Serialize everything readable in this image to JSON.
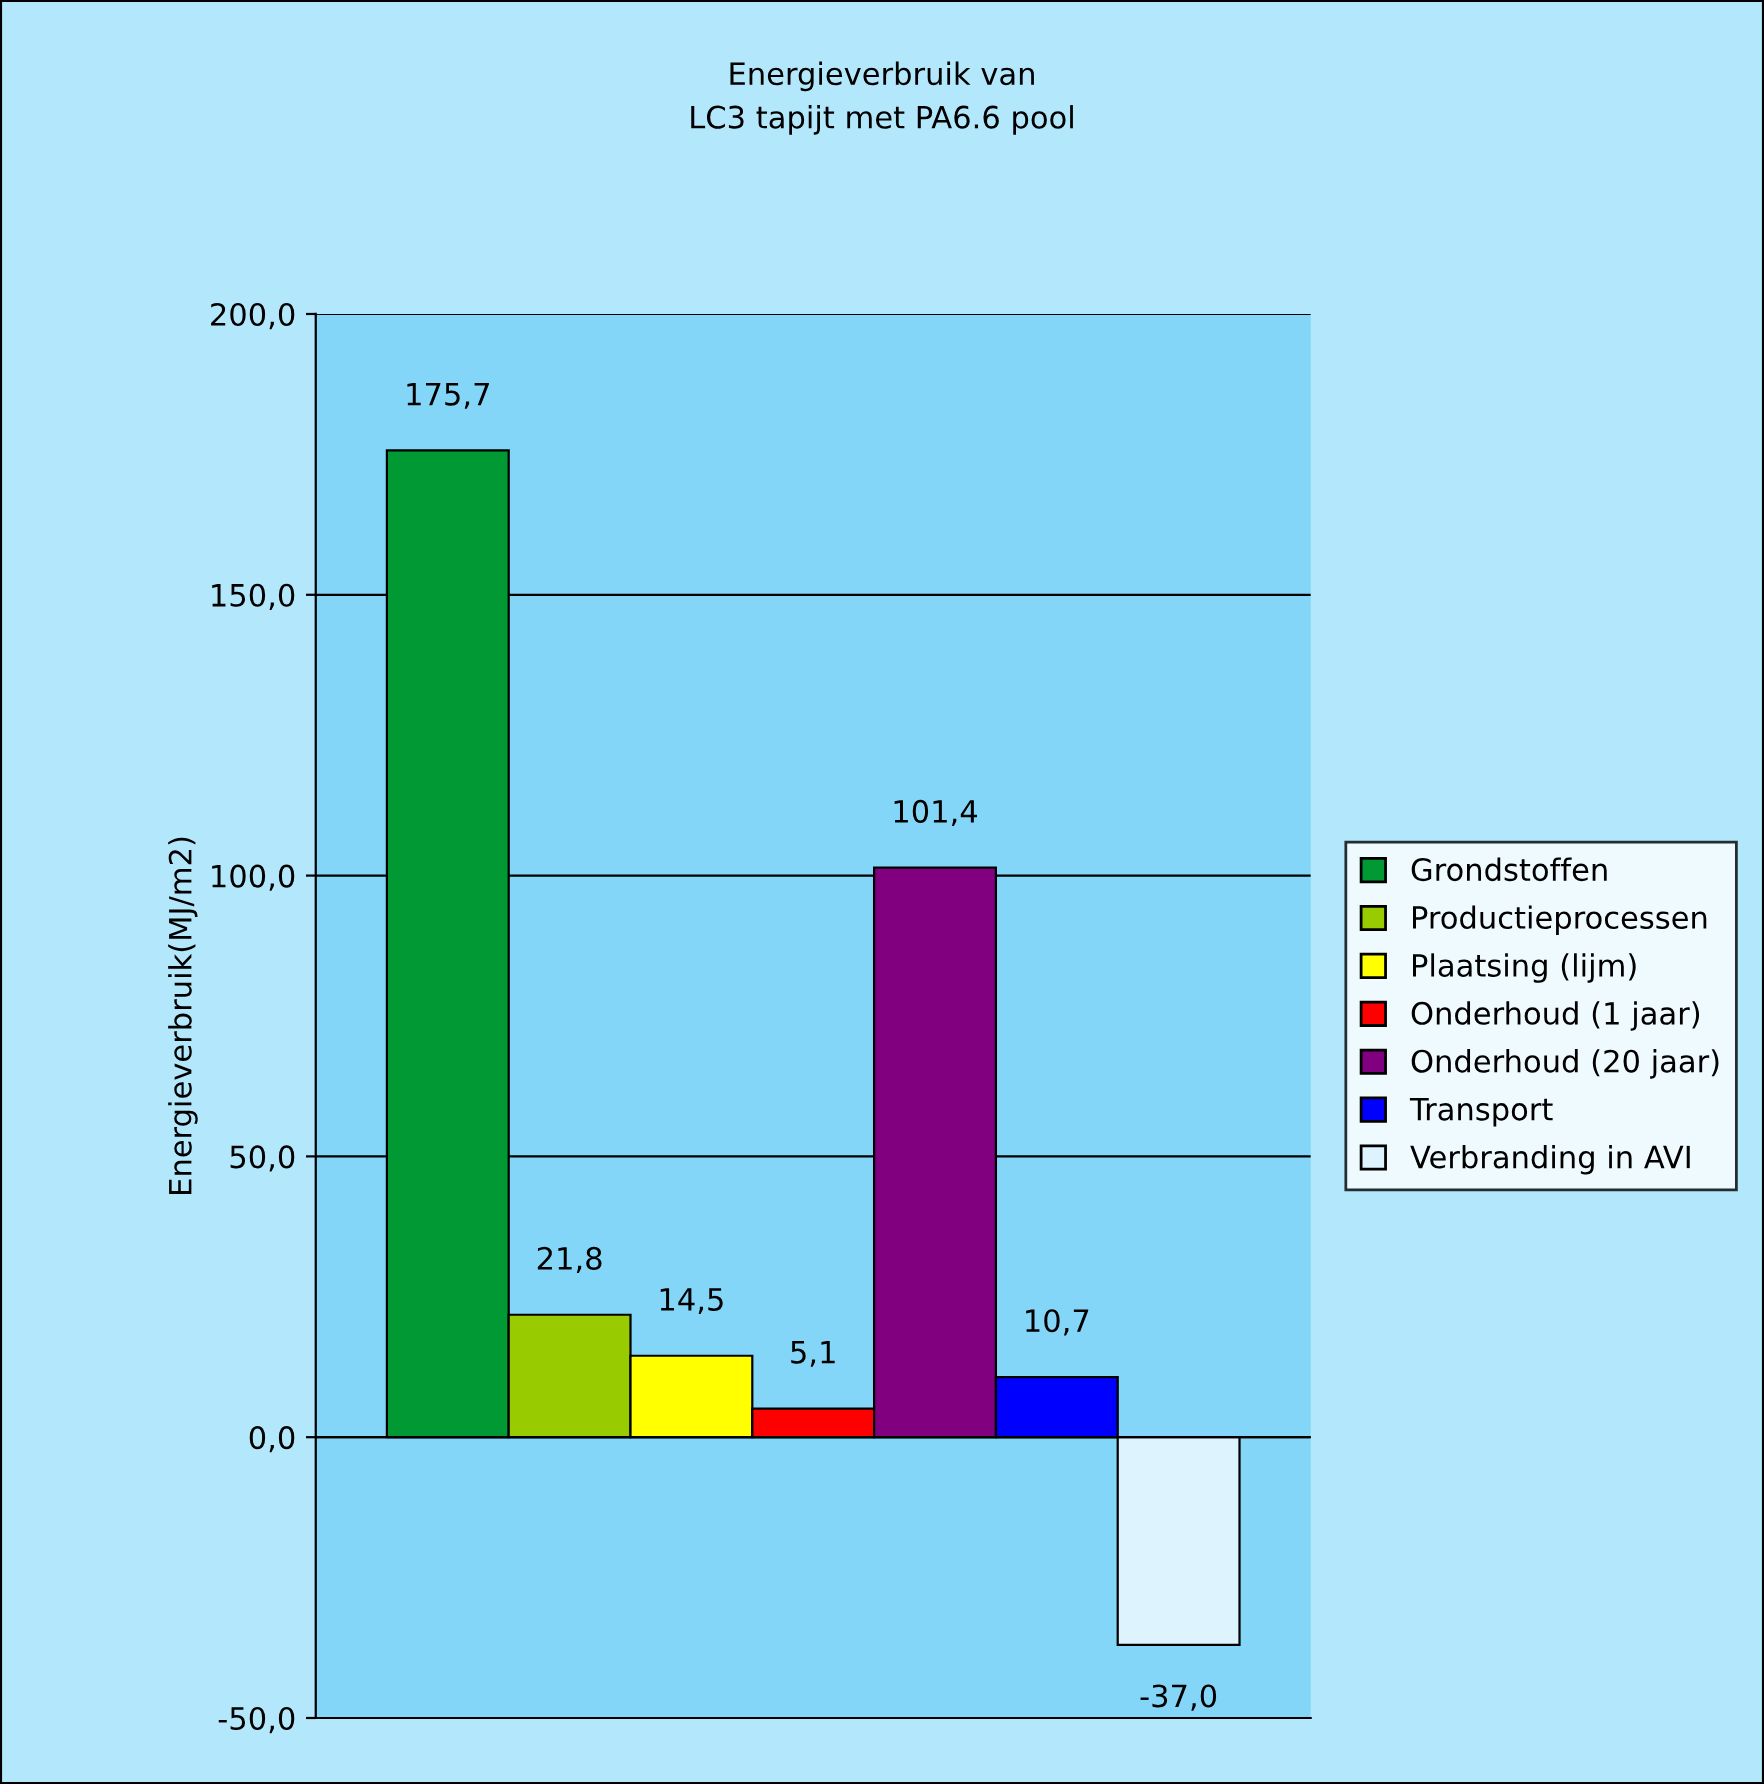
{
  "chart_data": {
    "type": "bar",
    "title": "Energieverbruik van\nLC3 tapijt met PA6.6 pool",
    "ylabel": "Energieverbruik(MJ/m2)",
    "categories": [
      null
    ],
    "series": [
      {
        "name": "Grondstoffen",
        "color": "#009933",
        "values": [
          175.7
        ],
        "value_labels": [
          "175,7"
        ]
      },
      {
        "name": "Productieprocessen",
        "color": "#99cc00",
        "values": [
          21.8
        ],
        "value_labels": [
          "21,8"
        ]
      },
      {
        "name": "Plaatsing (lijm)",
        "color": "#ffff00",
        "values": [
          14.5
        ],
        "value_labels": [
          "14,5"
        ]
      },
      {
        "name": "Onderhoud (1 jaar)",
        "color": "#ff0000",
        "values": [
          5.1
        ],
        "value_labels": [
          "5,1"
        ]
      },
      {
        "name": "Onderhoud (20 jaar)",
        "color": "#800080",
        "values": [
          101.4
        ],
        "value_labels": [
          "101,4"
        ]
      },
      {
        "name": "Transport",
        "color": "#0000ff",
        "values": [
          10.7
        ],
        "value_labels": [
          "10,7"
        ]
      },
      {
        "name": "Verbranding in AVI",
        "color": "#ddf4ff",
        "values": [
          -37.0
        ],
        "value_labels": [
          "-37,0"
        ]
      }
    ],
    "ylim": [
      -50,
      200
    ],
    "yticks": [
      {
        "value": -50,
        "label": "-50,0"
      },
      {
        "value": 0,
        "label": "0,0"
      },
      {
        "value": 50,
        "label": "50,0"
      },
      {
        "value": 100,
        "label": "100,0"
      },
      {
        "value": 150,
        "label": "150,0"
      },
      {
        "value": 200,
        "label": "200,0"
      }
    ],
    "grid": "y",
    "legend": "right"
  }
}
